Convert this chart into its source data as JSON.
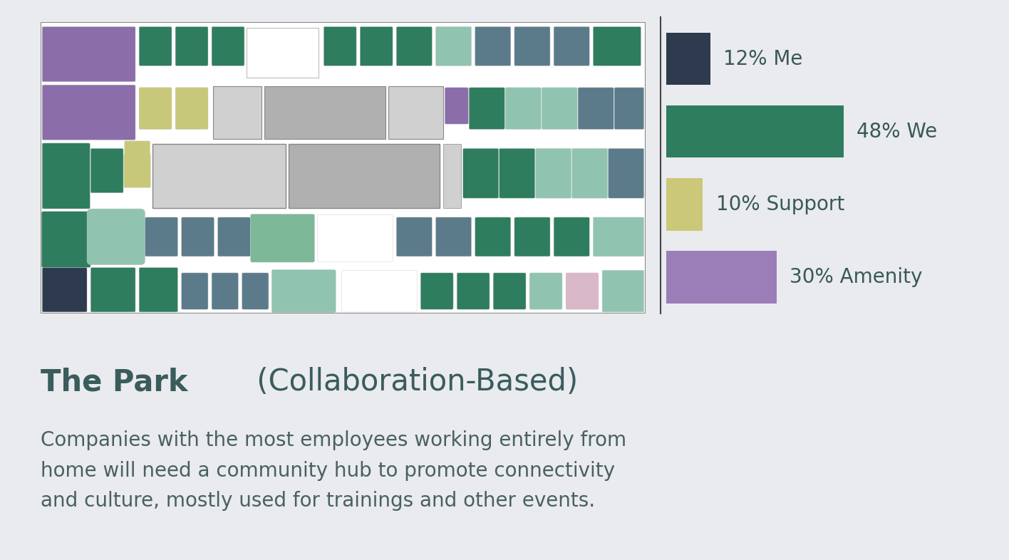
{
  "background_color": "#e9ebee",
  "title_bold": "The Park",
  "title_regular": " (Collaboration-Based)",
  "description": "Companies with the most employees working entirely from\nhome will need a community hub to promote connectivity\nand culture, mostly used for trainings and other events.",
  "title_color": "#3a5c5c",
  "desc_color": "#4a6060",
  "title_fontsize": 30,
  "desc_fontsize": 20,
  "bar_data": [
    {
      "label": "12% Me",
      "value": 12,
      "color": "#2e3a4e"
    },
    {
      "label": "48% We",
      "value": 48,
      "color": "#2e7d5e"
    },
    {
      "label": "10% Support",
      "value": 10,
      "color": "#ccc87a"
    },
    {
      "label": "30% Amenity",
      "value": 30,
      "color": "#9b7eb8"
    }
  ],
  "bar_max": 48,
  "chart_label_fontsize": 20,
  "chart_label_color": "#3a5858",
  "divider_color": "#444444"
}
